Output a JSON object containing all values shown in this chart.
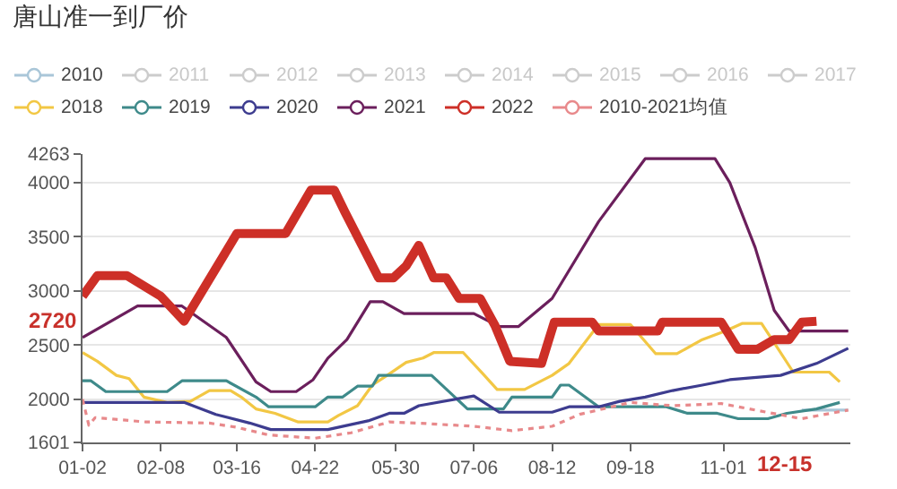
{
  "chart_data": {
    "type": "line",
    "title": "唐山准一到厂价",
    "ylim": [
      1601,
      4263
    ],
    "yticks": [
      1601,
      2000,
      2500,
      3000,
      3500,
      4000,
      4263
    ],
    "xlim": [
      "--01-02",
      "--12-31"
    ],
    "xticks": [
      {
        "value": "--01-02",
        "label": "01-02"
      },
      {
        "value": "--02-08",
        "label": "02-08"
      },
      {
        "value": "--03-16",
        "label": "03-16"
      },
      {
        "value": "--04-22",
        "label": "04-22"
      },
      {
        "value": "--05-30",
        "label": "05-30"
      },
      {
        "value": "--07-06",
        "label": "07-06"
      },
      {
        "value": "--08-12",
        "label": "08-12"
      },
      {
        "value": "--09-18",
        "label": "09-18"
      },
      {
        "value": "--11-01",
        "label": "11-01"
      }
    ],
    "grid": "y",
    "legend": "top",
    "marker": "none",
    "annotations": [
      {
        "text": "2720",
        "y": 2720
      },
      "12-15"
    ],
    "series": [
      {
        "name": "2010",
        "color": "#a9c6d8",
        "x": [
          "--12-08",
          "--12-30"
        ],
        "values": [
          1900,
          1900
        ]
      },
      {
        "name": "2011",
        "color": "#cccccc",
        "values": [
          null
        ]
      },
      {
        "name": "2012",
        "color": "#cccccc",
        "values": [
          null
        ]
      },
      {
        "name": "2013",
        "color": "#cccccc",
        "values": [
          null
        ]
      },
      {
        "name": "2014",
        "color": "#cccccc",
        "values": [
          null
        ]
      },
      {
        "name": "2015",
        "color": "#cccccc",
        "values": [
          null
        ]
      },
      {
        "name": "2016",
        "color": "#cccccc",
        "values": [
          null
        ]
      },
      {
        "name": "2017",
        "color": "#cccccc",
        "values": [
          null
        ]
      },
      {
        "name": "2018",
        "color": "#f2c744",
        "x": [
          "--01-02",
          "--01-09",
          "--01-18",
          "--01-24",
          "--01-31",
          "--02-11",
          "--02-22",
          "--03-03",
          "--03-13",
          "--03-18",
          "--03-25",
          "--04-03",
          "--04-14",
          "--04-28",
          "--05-03",
          "--05-12",
          "--05-19",
          "--05-26",
          "--06-04",
          "--06-12",
          "--06-17",
          "--07-01",
          "--07-10",
          "--07-17",
          "--07-30",
          "--08-12",
          "--08-20",
          "--09-03",
          "--09-18",
          "--09-30",
          "--10-10",
          "--10-22",
          "--11-02",
          "--11-10",
          "--11-19",
          "--11-24",
          "--12-04",
          "--12-21",
          "--12-26"
        ],
        "values": [
          2430,
          2350,
          2220,
          2190,
          2020,
          1970,
          1980,
          2080,
          2080,
          2020,
          1910,
          1870,
          1790,
          1790,
          1850,
          1940,
          2130,
          2220,
          2340,
          2380,
          2430,
          2430,
          2240,
          2090,
          2090,
          2220,
          2330,
          2690,
          2690,
          2420,
          2420,
          2550,
          2630,
          2700,
          2700,
          2550,
          2250,
          2250,
          2160
        ]
      },
      {
        "name": "2019",
        "color": "#3e8a8a",
        "x": [
          "--01-02",
          "--01-06",
          "--01-13",
          "--02-11",
          "--02-18",
          "--03-11",
          "--03-25",
          "--03-31",
          "--04-22",
          "--04-28",
          "--05-05",
          "--05-12",
          "--05-19",
          "--05-22",
          "--06-16",
          "--07-03",
          "--07-20",
          "--07-24",
          "--08-12",
          "--08-16",
          "--08-20",
          "--09-03",
          "--10-05",
          "--10-15",
          "--10-29",
          "--11-08",
          "--11-22",
          "--12-01",
          "--12-15",
          "--12-26"
        ],
        "values": [
          2170,
          2170,
          2070,
          2070,
          2170,
          2170,
          2020,
          1930,
          1930,
          2020,
          2020,
          2120,
          2120,
          2220,
          2220,
          1910,
          1910,
          2020,
          2020,
          2130,
          2130,
          1930,
          1930,
          1870,
          1870,
          1820,
          1820,
          1870,
          1910,
          1970
        ]
      },
      {
        "name": "2020",
        "color": "#3d3c8f",
        "x": [
          "--01-02",
          "--02-19",
          "--03-06",
          "--03-22",
          "--04-01",
          "--04-28",
          "--05-17",
          "--05-27",
          "--06-03",
          "--06-10",
          "--07-06",
          "--07-18",
          "--08-12",
          "--08-20",
          "--09-03",
          "--09-13",
          "--09-25",
          "--10-08",
          "--10-22",
          "--11-04",
          "--11-28",
          "--12-15",
          "--12-30"
        ],
        "values": [
          1970,
          1970,
          1860,
          1780,
          1720,
          1720,
          1800,
          1870,
          1870,
          1940,
          2030,
          1880,
          1880,
          1930,
          1930,
          1980,
          2020,
          2080,
          2130,
          2180,
          2220,
          2330,
          2470
        ]
      },
      {
        "name": "2021",
        "color": "#6b1f5c",
        "x": [
          "--01-02",
          "--01-28",
          "--02-18",
          "--03-11",
          "--03-25",
          "--04-01",
          "--04-13",
          "--04-21",
          "--04-28",
          "--05-07",
          "--05-18",
          "--05-24",
          "--06-03",
          "--07-06",
          "--07-18",
          "--07-27",
          "--08-12",
          "--09-03",
          "--09-25",
          "--10-28",
          "--11-04",
          "--11-16",
          "--11-25",
          "--12-02",
          "--12-30"
        ],
        "values": [
          2570,
          2860,
          2860,
          2570,
          2160,
          2070,
          2070,
          2180,
          2380,
          2550,
          2900,
          2900,
          2790,
          2790,
          2670,
          2670,
          2930,
          3640,
          4220,
          4220,
          4000,
          3400,
          2820,
          2630,
          2630
        ]
      },
      {
        "name": "2022",
        "color": "#cd2f27",
        "x": [
          "--01-02",
          "--01-09",
          "--01-23",
          "--02-08",
          "--02-19",
          "--03-16",
          "--04-08",
          "--04-20",
          "--05-01",
          "--05-06",
          "--05-22",
          "--05-29",
          "--06-04",
          "--06-10",
          "--06-17",
          "--06-23",
          "--06-29",
          "--07-09",
          "--07-16",
          "--07-23",
          "--08-07",
          "--08-10",
          "--08-13",
          "--08-31",
          "--09-03",
          "--10-01",
          "--10-03",
          "--10-31",
          "--11-08",
          "--11-17",
          "--11-25",
          "--12-02",
          "--12-08",
          "--12-15"
        ],
        "values": [
          2950,
          3140,
          3140,
          2950,
          2720,
          3530,
          3530,
          3930,
          3930,
          3730,
          3120,
          3120,
          3230,
          3420,
          3120,
          3120,
          2930,
          2930,
          2680,
          2350,
          2330,
          2520,
          2710,
          2710,
          2630,
          2630,
          2710,
          2710,
          2460,
          2460,
          2550,
          2550,
          2710,
          2720
        ]
      },
      {
        "name": "2010-2021均值",
        "color": "#e8898b",
        "line_style": "dotted",
        "x": [
          "--01-02",
          "--01-05",
          "--01-08",
          "--02-01",
          "--03-03",
          "--03-16",
          "--03-31",
          "--04-22",
          "--05-09",
          "--05-27",
          "--06-09",
          "--07-06",
          "--07-24",
          "--08-12",
          "--08-25",
          "--09-18",
          "--10-08",
          "--10-31",
          "--11-16",
          "--12-08",
          "--12-30"
        ],
        "values": [
          2000,
          1760,
          1830,
          1790,
          1780,
          1740,
          1670,
          1640,
          1690,
          1790,
          1780,
          1750,
          1710,
          1750,
          1860,
          1970,
          1940,
          1960,
          1900,
          1820,
          1900
        ]
      }
    ]
  }
}
